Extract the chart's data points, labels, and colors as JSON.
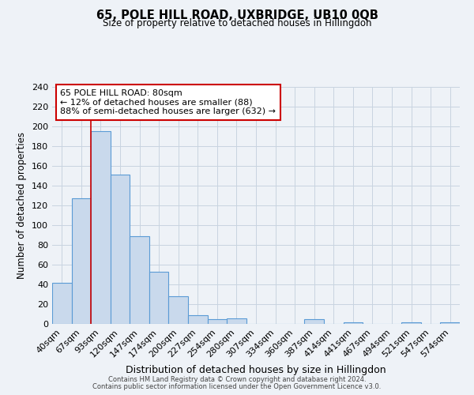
{
  "title": "65, POLE HILL ROAD, UXBRIDGE, UB10 0QB",
  "subtitle": "Size of property relative to detached houses in Hillingdon",
  "xlabel": "Distribution of detached houses by size in Hillingdon",
  "ylabel": "Number of detached properties",
  "bin_labels": [
    "40sqm",
    "67sqm",
    "93sqm",
    "120sqm",
    "147sqm",
    "174sqm",
    "200sqm",
    "227sqm",
    "254sqm",
    "280sqm",
    "307sqm",
    "334sqm",
    "360sqm",
    "387sqm",
    "414sqm",
    "441sqm",
    "467sqm",
    "494sqm",
    "521sqm",
    "547sqm",
    "574sqm"
  ],
  "bar_values": [
    42,
    127,
    195,
    151,
    89,
    53,
    28,
    9,
    5,
    6,
    0,
    0,
    0,
    5,
    0,
    2,
    0,
    0,
    2,
    0,
    2
  ],
  "bar_color": "#c9d9ec",
  "bar_edge_color": "#5b9bd5",
  "vline_x_between": 1.5,
  "vline_color": "#cc0000",
  "annotation_title": "65 POLE HILL ROAD: 80sqm",
  "annotation_line1": "← 12% of detached houses are smaller (88)",
  "annotation_line2": "88% of semi-detached houses are larger (632) →",
  "annotation_box_color": "#ffffff",
  "annotation_box_edge": "#cc0000",
  "ylim": [
    0,
    240
  ],
  "yticks": [
    0,
    20,
    40,
    60,
    80,
    100,
    120,
    140,
    160,
    180,
    200,
    220,
    240
  ],
  "grid_color": "#c8d4e0",
  "bg_color": "#eef2f7",
  "footer1": "Contains HM Land Registry data © Crown copyright and database right 2024.",
  "footer2": "Contains public sector information licensed under the Open Government Licence v3.0."
}
